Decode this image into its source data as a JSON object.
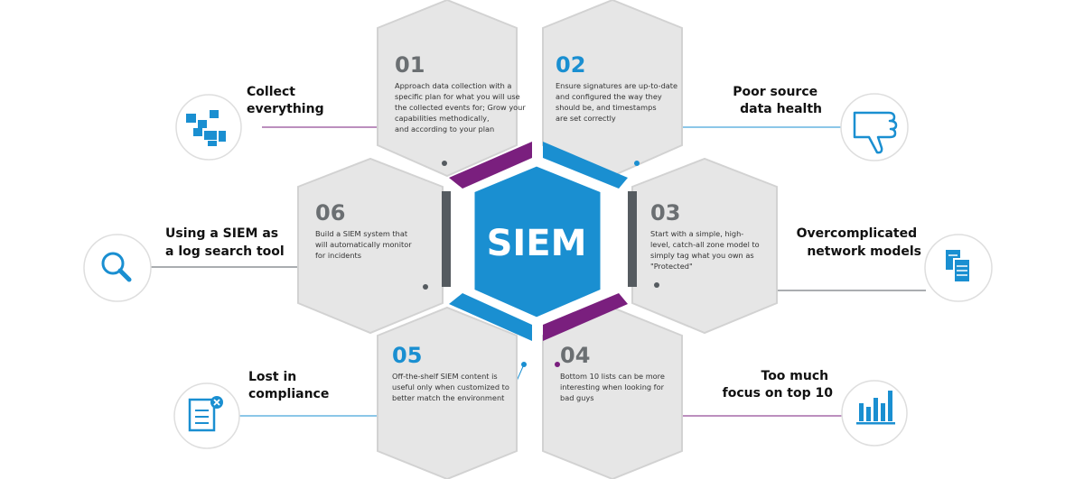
{
  "diagram": {
    "center_label": "SIEM",
    "colors": {
      "blue": "#1a8fd1",
      "purple": "#7a1f7e",
      "gray": "#555b60",
      "hex_fill": "#e6e6e6",
      "hex_stroke": "#d2d2d2"
    },
    "hexes": [
      {
        "number": "01",
        "number_color": "#6b6f72",
        "lines": [
          "Approach data collection with a",
          "specific plan for what you will use",
          "the collected events for; Grow your",
          "capabilities methodically,",
          "and according to your plan"
        ]
      },
      {
        "number": "02",
        "number_color": "#1a8fd1",
        "lines": [
          "Ensure signatures are up-to-date",
          "and configured the way they",
          "should be, and timestamps",
          "are set correctly"
        ]
      },
      {
        "number": "03",
        "number_color": "#6b6f72",
        "lines": [
          "Start with a simple, high-",
          "level, catch-all zone model to",
          "simply tag what you own as",
          "\"Protected\""
        ]
      },
      {
        "number": "04",
        "number_color": "#6b6f72",
        "lines": [
          "Bottom 10 lists can be more",
          "interesting when looking for",
          "bad guys"
        ]
      },
      {
        "number": "05",
        "number_color": "#1a8fd1",
        "lines": [
          "Off-the-shelf SIEM content is",
          "useful only when customized to",
          "better match the environment"
        ]
      },
      {
        "number": "06",
        "number_color": "#6b6f72",
        "lines": [
          "Build a SIEM system that",
          "will automatically monitor",
          "for incidents"
        ]
      }
    ],
    "pitfalls": [
      {
        "lines": [
          "Collect",
          "everything"
        ],
        "icon": "pixel-blocks-icon"
      },
      {
        "lines": [
          "Poor source",
          "data health"
        ],
        "icon": "thumbs-down-icon"
      },
      {
        "lines": [
          "Overcomplicated",
          "network models"
        ],
        "icon": "documents-icon"
      },
      {
        "lines": [
          "Too much",
          "focus on top 10"
        ],
        "icon": "bar-chart-icon"
      },
      {
        "lines": [
          "Lost in",
          "compliance"
        ],
        "icon": "document-x-icon"
      },
      {
        "lines": [
          "Using a SIEM as",
          "a log search tool"
        ],
        "icon": "magnifier-icon"
      }
    ]
  }
}
